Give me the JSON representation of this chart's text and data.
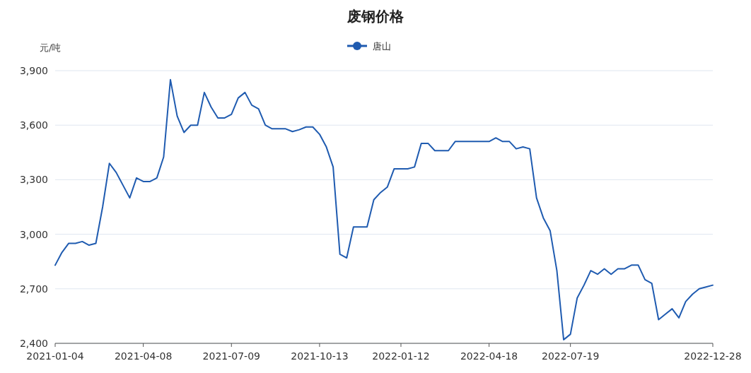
{
  "chart_data": {
    "type": "line",
    "title": "废钢价格",
    "ylabel": "元/吨",
    "categories": [
      "2021-01-04",
      null,
      null,
      null,
      null,
      null,
      null,
      null,
      null,
      null,
      null,
      null,
      null,
      "2021-04-08",
      null,
      null,
      null,
      null,
      null,
      null,
      null,
      null,
      null,
      null,
      null,
      null,
      "2021-07-09",
      null,
      null,
      null,
      null,
      null,
      null,
      null,
      null,
      null,
      null,
      null,
      null,
      "2021-10-13",
      null,
      null,
      null,
      null,
      null,
      null,
      null,
      null,
      null,
      null,
      null,
      "2022-01-12",
      null,
      null,
      null,
      null,
      null,
      null,
      null,
      null,
      null,
      null,
      null,
      null,
      "2022-04-18",
      null,
      null,
      null,
      null,
      null,
      null,
      null,
      null,
      null,
      null,
      null,
      "2022-07-19",
      null,
      null,
      null,
      null,
      null,
      null,
      null,
      null,
      null,
      null,
      null,
      null,
      null,
      null,
      null,
      null,
      null,
      null,
      null,
      null,
      "2022-12-28"
    ],
    "series": [
      {
        "name": "唐山",
        "color": "#1f5bb0",
        "values": [
          2830,
          2900,
          2950,
          2950,
          2960,
          2940,
          2950,
          3150,
          3390,
          3340,
          3270,
          3200,
          3310,
          3290,
          3290,
          3310,
          3425,
          3850,
          3650,
          3560,
          3600,
          3600,
          3780,
          3700,
          3640,
          3640,
          3660,
          3750,
          3780,
          3710,
          3690,
          3600,
          3580,
          3580,
          3580,
          3565,
          3575,
          3590,
          3590,
          3550,
          3480,
          3370,
          2890,
          2870,
          3040,
          3040,
          3040,
          3190,
          3230,
          3260,
          3360,
          3360,
          3360,
          3370,
          3500,
          3500,
          3460,
          3460,
          3460,
          3510,
          3510,
          3510,
          3510,
          3510,
          3510,
          3530,
          3510,
          3510,
          3470,
          3480,
          3470,
          3200,
          3090,
          3020,
          2800,
          2420,
          2450,
          2650,
          2720,
          2800,
          2780,
          2810,
          2780,
          2810,
          2810,
          2830,
          2830,
          2750,
          2730,
          2530,
          2560,
          2590,
          2540,
          2630,
          2670,
          2700,
          2710,
          2720
        ]
      }
    ],
    "ylim": [
      2400,
      3900
    ],
    "yticks": [
      {
        "value": 2400,
        "label": "2,400"
      },
      {
        "value": 2700,
        "label": "2,700"
      },
      {
        "value": 3000,
        "label": "3,000"
      },
      {
        "value": 3300,
        "label": "3,300"
      },
      {
        "value": 3600,
        "label": "3,600"
      },
      {
        "value": 3900,
        "label": "3,900"
      }
    ],
    "grid": "y",
    "legend": "top"
  }
}
